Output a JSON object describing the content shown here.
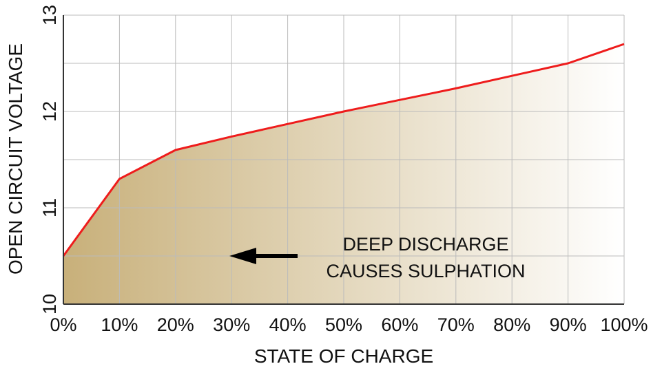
{
  "chart_data": {
    "type": "area",
    "xlabel": "STATE OF CHARGE",
    "ylabel": "OPEN CIRCUIT VOLTAGE",
    "x": [
      0,
      10,
      20,
      30,
      40,
      50,
      60,
      70,
      80,
      90,
      100
    ],
    "x_tick_labels": [
      "0%",
      "10%",
      "20%",
      "30%",
      "40%",
      "50%",
      "60%",
      "70%",
      "80%",
      "90%",
      "100%"
    ],
    "y_ticks": [
      10,
      11,
      12,
      13
    ],
    "y_tick_labels": [
      "10",
      "11",
      "12",
      "13"
    ],
    "xlim": [
      0,
      100
    ],
    "ylim": [
      10,
      13
    ],
    "series": [
      {
        "x": [
          0,
          10,
          20,
          30,
          40,
          50,
          60,
          70,
          80,
          90,
          100
        ],
        "values": [
          10.5,
          11.3,
          11.6,
          11.74,
          11.87,
          12.0,
          12.12,
          12.24,
          12.37,
          12.5,
          12.7
        ]
      }
    ],
    "grid": true,
    "annotations": [
      {
        "lines": [
          "DEEP DISCHARGE",
          "CAUSES SULPHATION"
        ],
        "arrow": "left"
      }
    ],
    "colors": {
      "line": "#ee1c1c",
      "fill_left": "#c8b07a",
      "fill_right": "#ffffff",
      "grid": "#bbbbbb",
      "axis": "#333333",
      "arrow": "#000000"
    }
  }
}
